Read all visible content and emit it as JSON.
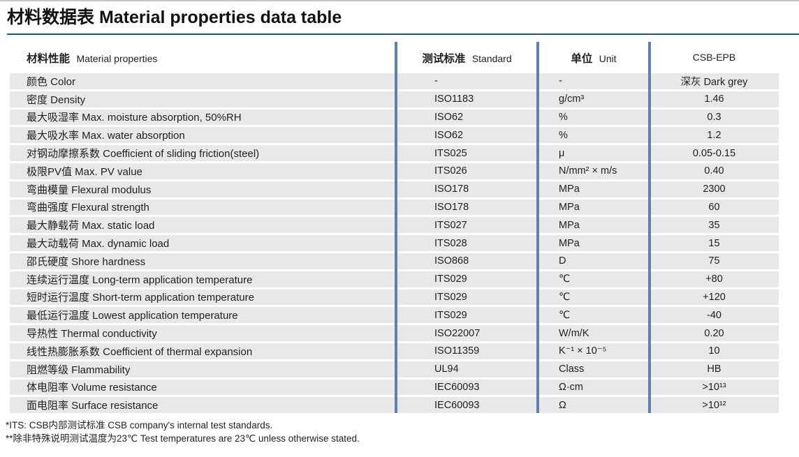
{
  "page": {
    "title": "材料数据表 Material properties data table"
  },
  "colors": {
    "column_divider_blue": "#5c81b6",
    "title_rule_navy": "#1f546f",
    "row_stripe_grey": "#e8e8e8"
  },
  "table": {
    "headers": {
      "property_zh": "材料性能",
      "property_en": "Material properties",
      "standard_zh": "测试标准",
      "standard_en": "Standard",
      "unit_zh": "单位",
      "unit_en": "Unit",
      "grade": "CSB-EPB"
    },
    "rows": [
      {
        "property": "颜色 Color",
        "standard": "-",
        "unit": "-",
        "value": "深灰 Dark grey"
      },
      {
        "property": "密度 Density",
        "standard": "ISO1183",
        "unit": "g/cm³",
        "value": "1.46"
      },
      {
        "property": "最大吸湿率 Max. moisture absorption, 50%RH",
        "standard": "ISO62",
        "unit": "%",
        "value": "0.3"
      },
      {
        "property": "最大吸水率 Max. water absorption",
        "standard": "ISO62",
        "unit": "%",
        "value": "1.2"
      },
      {
        "property": "对钢动摩擦系数 Coefficient of sliding friction(steel)",
        "standard": "ITS025",
        "unit": "μ",
        "value": "0.05-0.15"
      },
      {
        "property": "极限PV值 Max. PV value",
        "standard": "ITS026",
        "unit": "N/mm² × m/s",
        "value": "0.40"
      },
      {
        "property": "弯曲模量 Flexural modulus",
        "standard": "ISO178",
        "unit": "MPa",
        "value": "2300"
      },
      {
        "property": "弯曲强度 Flexural strength",
        "standard": "ISO178",
        "unit": "MPa",
        "value": "60"
      },
      {
        "property": "最大静载荷 Max. static load",
        "standard": "ITS027",
        "unit": "MPa",
        "value": "35"
      },
      {
        "property": "最大动载荷 Max. dynamic load",
        "standard": "ITS028",
        "unit": "MPa",
        "value": "15"
      },
      {
        "property": "邵氏硬度 Shore hardness",
        "standard": "ISO868",
        "unit": "D",
        "value": "75"
      },
      {
        "property": "连续运行温度 Long-term application temperature",
        "standard": "ITS029",
        "unit": "℃",
        "value": "+80"
      },
      {
        "property": "短时运行温度 Short-term application temperature",
        "standard": "ITS029",
        "unit": "℃",
        "value": "+120"
      },
      {
        "property": "最低运行温度 Lowest application temperature",
        "standard": "ITS029",
        "unit": "℃",
        "value": "-40"
      },
      {
        "property": "导热性 Thermal conductivity",
        "standard": "ISO22007",
        "unit": "W/m/K",
        "value": "0.20"
      },
      {
        "property": "线性热膨胀系数 Coefficient of thermal expansion",
        "standard": "ISO11359",
        "unit": "K⁻¹ × 10⁻⁵",
        "value": "10"
      },
      {
        "property": "阻燃等级 Flammability",
        "standard": "UL94",
        "unit": "Class",
        "value": "HB"
      },
      {
        "property": "体电阻率 Volume resistance",
        "standard": "IEC60093",
        "unit": "Ω·cm",
        "value": ">10¹³"
      },
      {
        "property": "面电阻率 Surface resistance",
        "standard": "IEC60093",
        "unit": "Ω",
        "value": ">10¹²"
      }
    ]
  },
  "footnotes": [
    "*ITS:  CSB内部测试标准 CSB company's internal test standards.",
    "**除非特殊说明测试温度为23℃ Test temperatures are 23℃ unless otherwise stated."
  ]
}
